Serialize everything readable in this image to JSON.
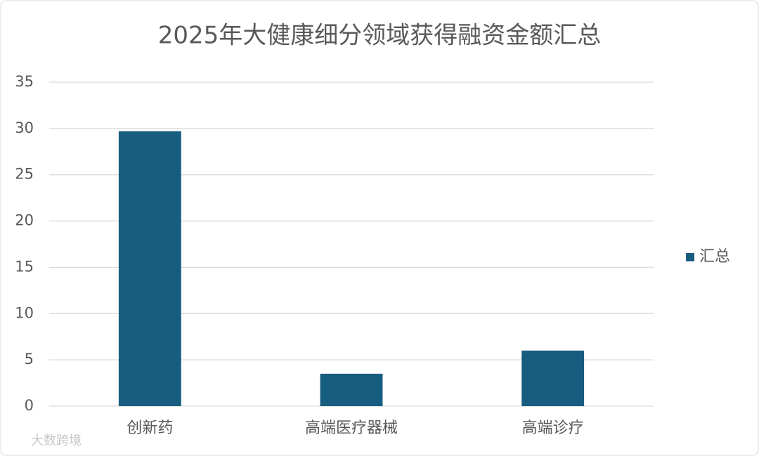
{
  "chart_data": {
    "type": "bar",
    "title": "2025年大健康细分领域获得融资金额汇总",
    "categories": [
      "创新药",
      "高端医疗器械",
      "高端诊疗"
    ],
    "series": [
      {
        "name": "汇总",
        "color": "#175d7f",
        "values": [
          29.7,
          3.5,
          6.0
        ]
      }
    ],
    "ylim": [
      0,
      35
    ],
    "yticks": [
      0,
      5,
      10,
      15,
      20,
      25,
      30,
      35
    ],
    "grid": true,
    "legend": "right"
  },
  "watermark": "大数跨境"
}
